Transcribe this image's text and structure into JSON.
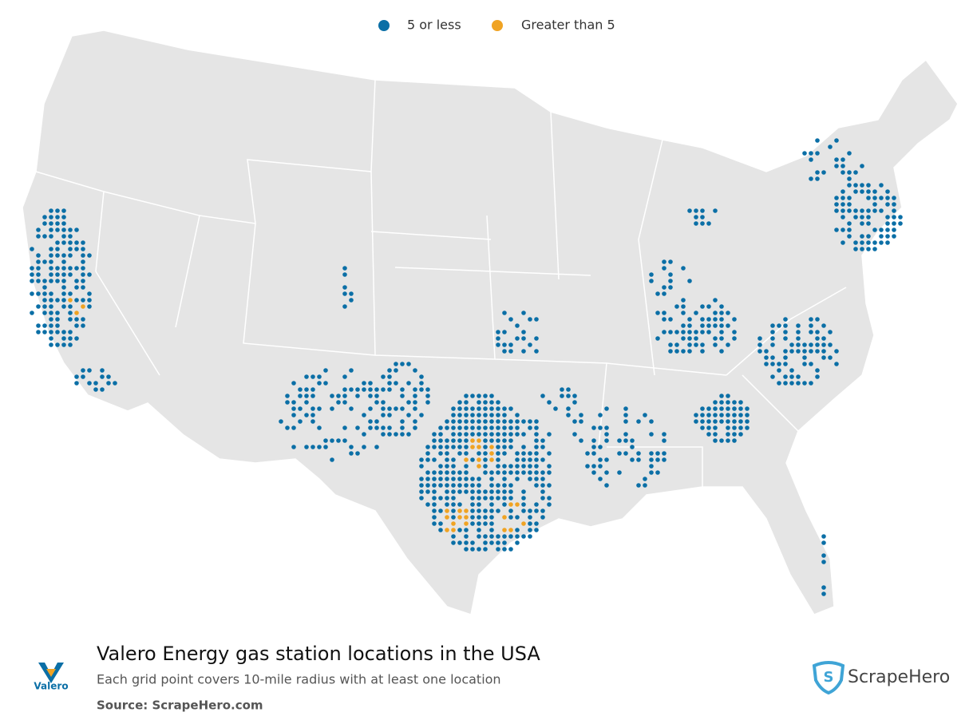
{
  "legend": [
    {
      "name": "5 or less",
      "color": "#0b6fa6"
    },
    {
      "name": "Greater than 5",
      "color": "#f0a323"
    }
  ],
  "title": "Valero Energy gas station locations in the USA",
  "subtitle": "Each grid point covers 10-mile radius with at least one location",
  "source": "Source: ScrapeHero.com",
  "brand_logo": "Valero",
  "publisher_logo": "ScrapeHero"
}
